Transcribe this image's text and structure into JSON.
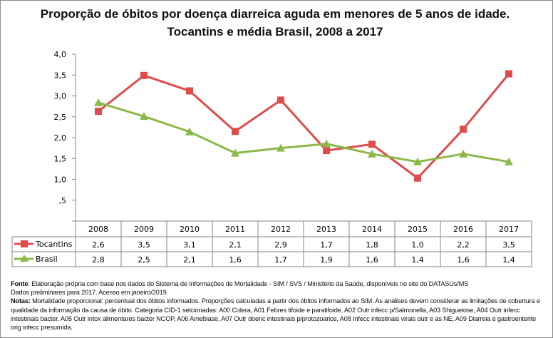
{
  "chart_data": {
    "type": "line",
    "title": "Proporção de óbitos por doença diarreica aguda em menores de 5 anos de idade. Tocantins e média Brasil, 2008 a 2017",
    "categories": [
      "2008",
      "2009",
      "2010",
      "2011",
      "2012",
      "2013",
      "2014",
      "2015",
      "2016",
      "2017"
    ],
    "ylim": [
      0,
      4.0
    ],
    "yticks": [
      "",
      ",5",
      "1,0",
      "1,5",
      "2,0",
      "2,5",
      "3,0",
      "3,5",
      "4,0"
    ],
    "grid": false,
    "legend": "data-table",
    "series": [
      {
        "name": "Tocantins",
        "color": "#e04c4c",
        "marker": "square",
        "values": [
          2.63,
          3.49,
          3.12,
          2.15,
          2.9,
          1.69,
          1.84,
          1.03,
          2.2,
          3.53
        ],
        "labels": [
          "2,6",
          "3,5",
          "3,1",
          "2,1",
          "2,9",
          "1,7",
          "1,8",
          "1,0",
          "2,2",
          "3,5"
        ]
      },
      {
        "name": "Brasil",
        "color": "#8cb84a",
        "marker": "triangle",
        "values": [
          2.84,
          2.51,
          2.14,
          1.63,
          1.75,
          1.85,
          1.61,
          1.42,
          1.61,
          1.42
        ],
        "labels": [
          "2,8",
          "2,5",
          "2,1",
          "1,6",
          "1,7",
          "1,9",
          "1,6",
          "1,4",
          "1,6",
          "1,4"
        ]
      }
    ]
  },
  "notes": {
    "fonte_label": "Fonte",
    "fonte_text": ": Elaboração própria com base nos dados do Sistema de Informações de Mortalidade - SIM / SVS / Ministério da Saúde, disponíveis no site do DATASUs/MS",
    "fonte_line2": "Dados preliminares para 2017. Acesso em janeiro/2019.",
    "notas_label": "Notas:",
    "notas_text": " Mortalidade proporcional: percentual dos óbitos informados. Proporções calculadas a partir dos óbitos informados ao SIM. As análises devem considerar as limitações de cobertura e qualidade da informação da causa de óbito. Categoria CID-1 selcionadas: A00 Colera, A01 Febres tifoide e paratifoide, A02 Outr infecc p/Salmonella, A03 Shiguelose, A04 Outr infecc intestinais bacter, A05 Outr intox alimentares bacter NCOP, A06 Amebiase, A07 Outr doenc intestinais p/protozoarios, A08 Infecc intestinais virais outr e as NE, A09 Diarreia e gastroenterite orig infecc presumida."
  }
}
